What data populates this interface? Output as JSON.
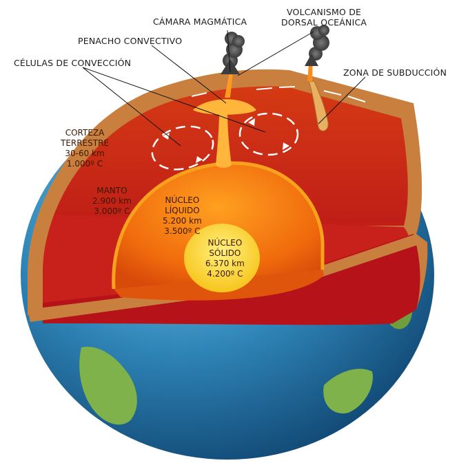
{
  "labels": {
    "camara": "CÁMARA MAGMÁTICA",
    "volcanismo_1": "VOLCANISMO DE",
    "volcanismo_2": "DORSAL OCEÁNICA",
    "penacho": "PENACHO CONVECTIVO",
    "celulas": "CÉLULAS DE CONVECCIÓN",
    "subduccion": "ZONA DE SUBDUCCIÓN"
  },
  "layers": {
    "corteza": {
      "line1": "CORTEZA",
      "line2": "TERRESTRE",
      "depth": "30-60 km",
      "temp": "1.000º C"
    },
    "manto": {
      "line1": "MANTO",
      "depth": "2.900 km",
      "temp": "3.000º C"
    },
    "nucleo_liquido": {
      "line1": "NÚCLEO",
      "line2": "LÍQUIDO",
      "depth": "5.200 km",
      "temp": "3.500º C"
    },
    "nucleo_solido": {
      "line1": "NÚCLEO",
      "line2": "SÓLIDO",
      "depth": "6.370 km",
      "temp": "4.200º C"
    }
  },
  "colors": {
    "ocean": "#2f86b8",
    "land": "#7fb24a",
    "crust": "#c9803f",
    "mantle": "#c8201b",
    "outer_core": "#f06a0c",
    "inner_core": "#ffd21e"
  }
}
